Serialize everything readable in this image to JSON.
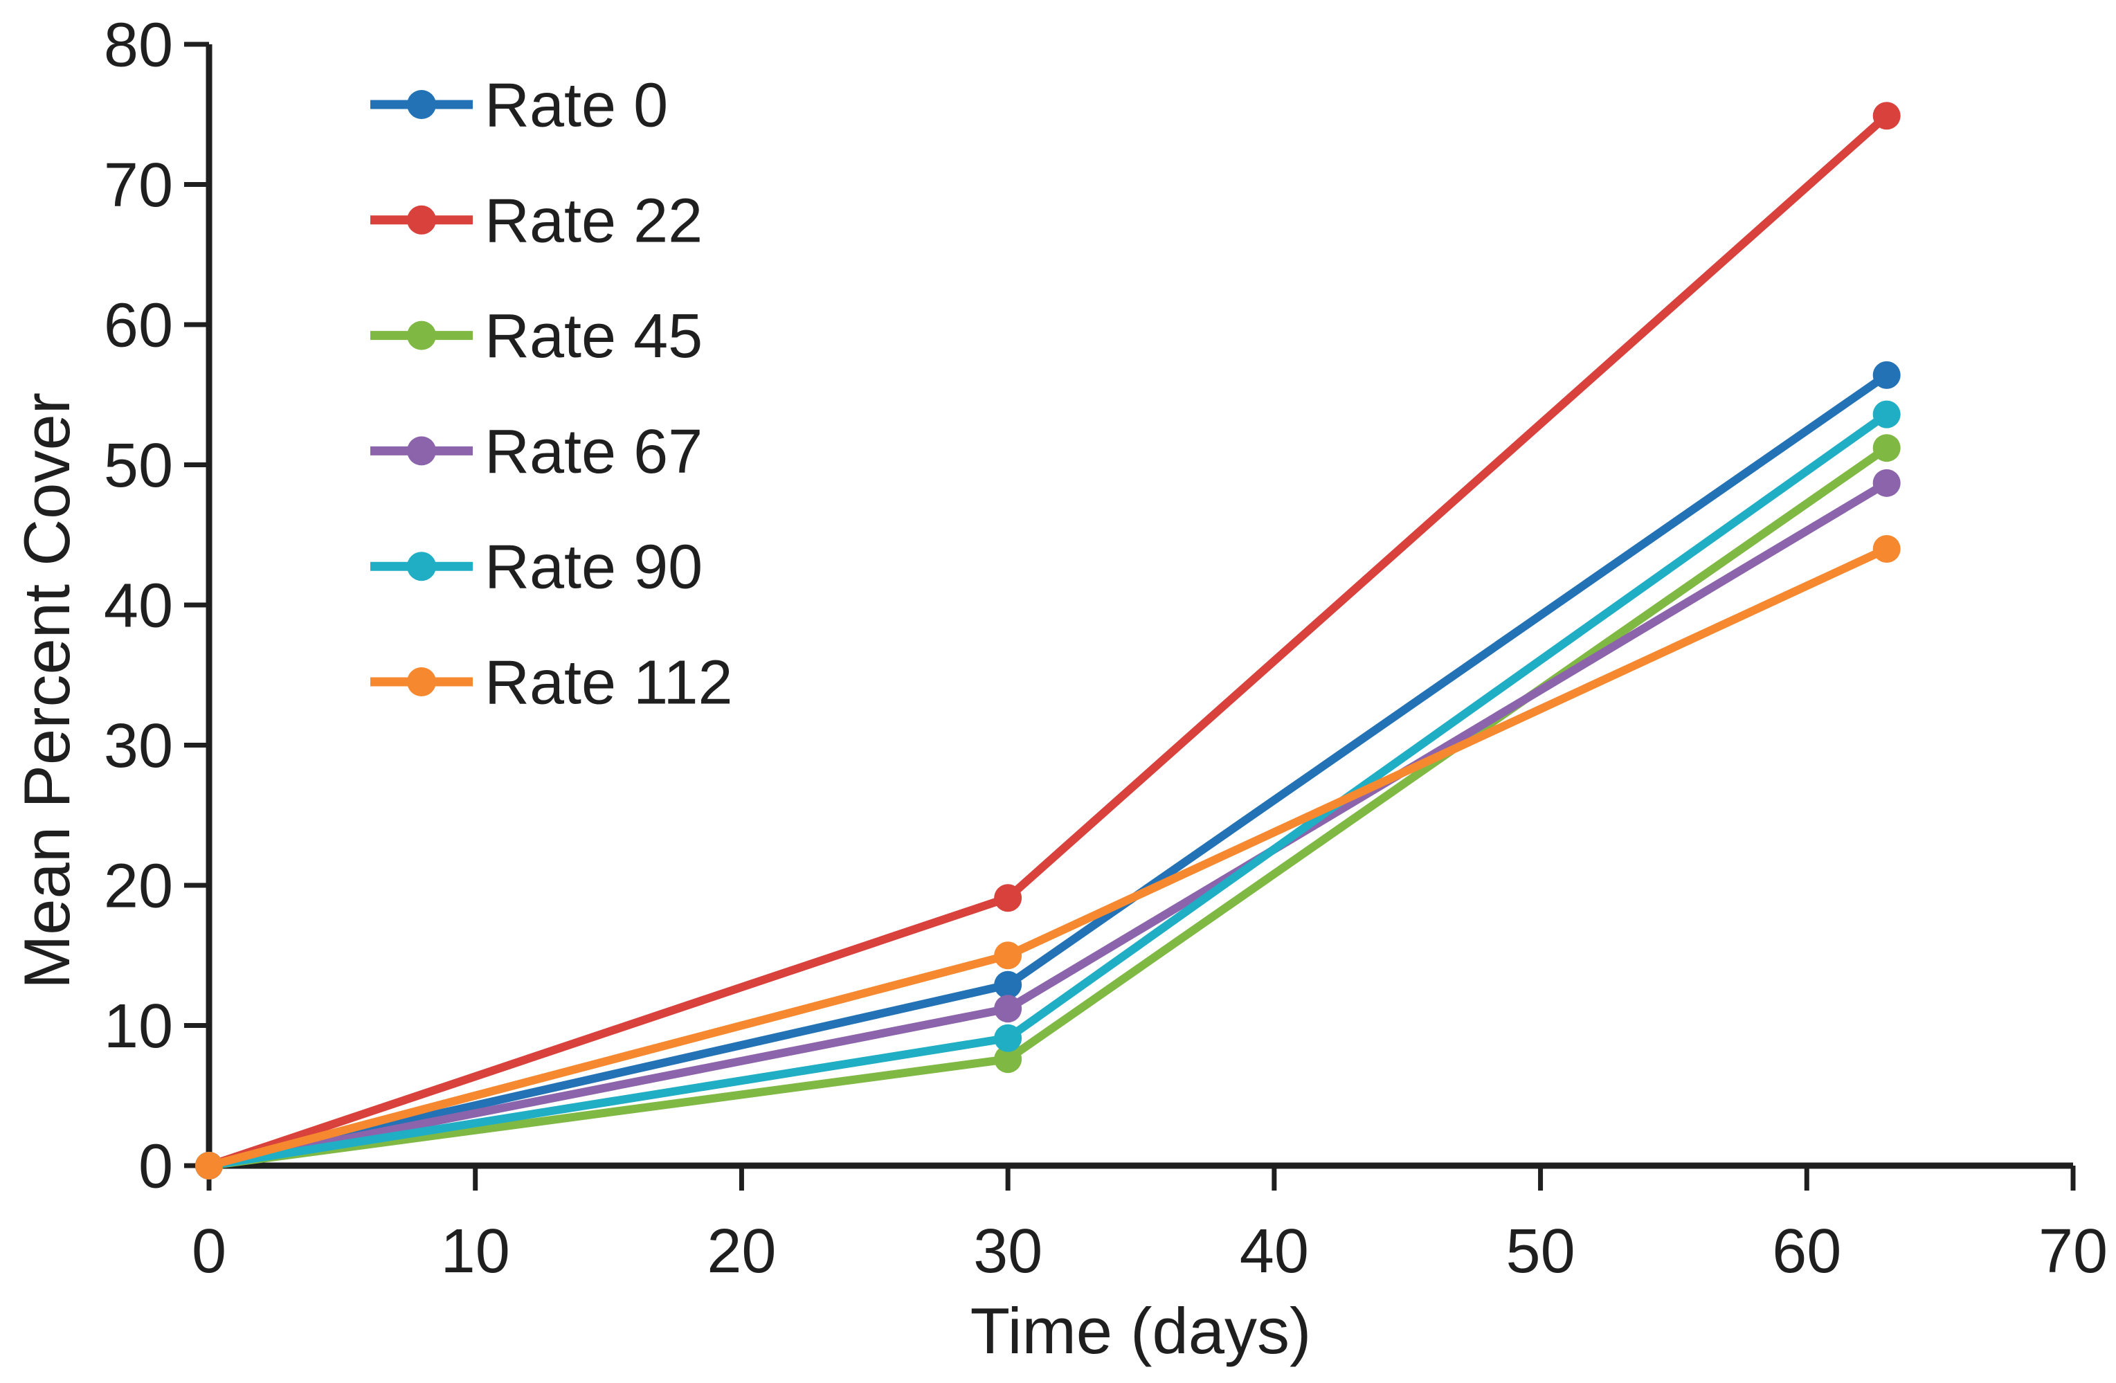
{
  "page": {
    "background_color": "#ffffff",
    "text_color": "#1f1f1f"
  },
  "chart_data": {
    "type": "line",
    "title": "",
    "xlabel": "Time (days)",
    "ylabel": "Mean Percent Cover",
    "x": [
      0,
      30,
      63
    ],
    "xlim": [
      0,
      70
    ],
    "ylim": [
      0,
      80
    ],
    "xticks": [
      0,
      10,
      20,
      30,
      40,
      50,
      60,
      70
    ],
    "yticks": [
      0,
      10,
      20,
      30,
      40,
      50,
      60,
      70,
      80
    ],
    "grid": false,
    "legend_position": "top-left-inside",
    "axis_color": "#1f1f1f",
    "marker_shape": "circle",
    "series": [
      {
        "name": "Rate 0",
        "color": "#2272B5",
        "values": [
          0,
          12.9,
          56.4
        ]
      },
      {
        "name": "Rate 22",
        "color": "#D9413C",
        "values": [
          0,
          19.1,
          74.9
        ]
      },
      {
        "name": "Rate 45",
        "color": "#7FB943",
        "values": [
          0,
          7.6,
          51.2
        ]
      },
      {
        "name": "Rate 67",
        "color": "#8B64AB",
        "values": [
          0,
          11.2,
          48.7
        ]
      },
      {
        "name": "Rate 90",
        "color": "#20AEC5",
        "values": [
          0,
          9.1,
          53.6
        ]
      },
      {
        "name": "Rate 112",
        "color": "#F6882F",
        "values": [
          0,
          15.0,
          44.0
        ]
      }
    ]
  }
}
